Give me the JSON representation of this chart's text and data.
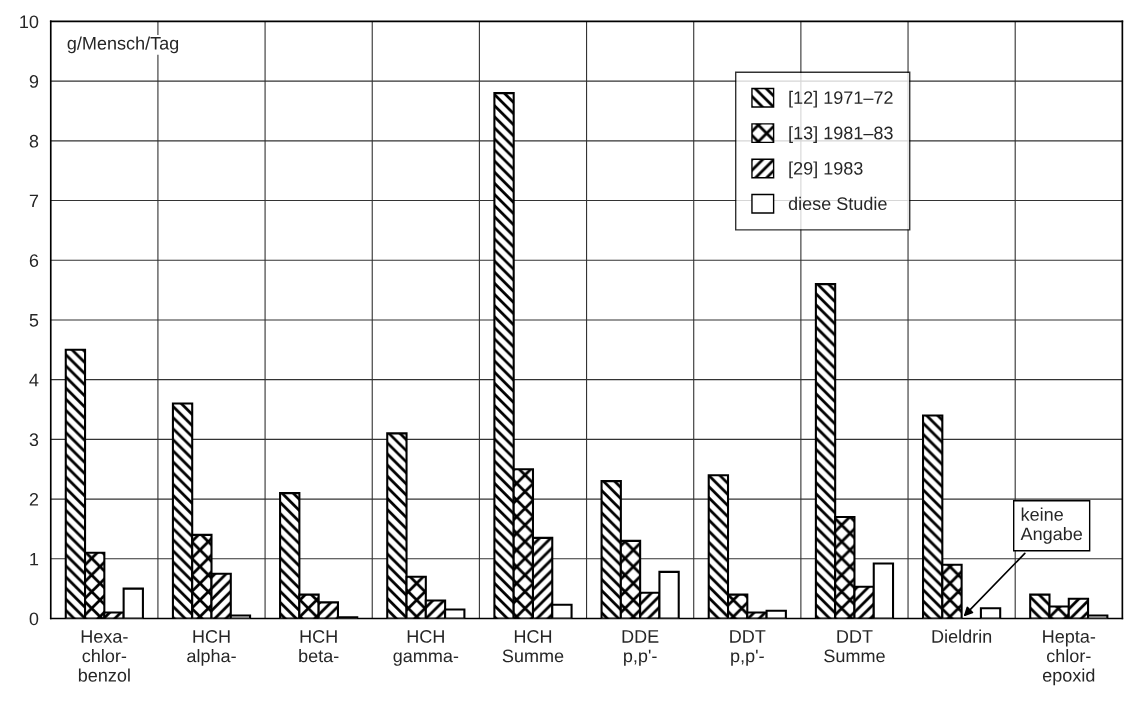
{
  "chart_data": {
    "type": "bar",
    "ylabel": "g/Mensch/Tag",
    "categories": [
      "Hexa-\nchlor-\nbenzol",
      "HCH\nalpha-",
      "HCH\nbeta-",
      "HCH\ngamma-",
      "HCH\nSumme",
      "DDE\np,p'-",
      "DDT\np,p'-",
      "DDT\nSumme",
      "Dieldrin",
      "Hepta-\nchlor-\nepoxid"
    ],
    "series": [
      {
        "name": "[12] 1971–72",
        "color": "#000000",
        "values": [
          4.5,
          3.6,
          2.1,
          3.1,
          8.8,
          2.3,
          2.4,
          5.6,
          3.4,
          0.4
        ]
      },
      {
        "name": "[13] 1981–83",
        "color": "#000000",
        "values": [
          1.1,
          1.4,
          0.4,
          0.7,
          2.5,
          1.3,
          0.4,
          1.7,
          0.9,
          0.2
        ]
      },
      {
        "name": "[29] 1983",
        "color": "#000000",
        "values": [
          0.1,
          0.75,
          0.27,
          0.3,
          1.35,
          0.43,
          0.1,
          0.53,
          null,
          0.33
        ]
      },
      {
        "name": "diese Studie",
        "color": "#000000",
        "values": [
          0.5,
          0.05,
          0.02,
          0.15,
          0.23,
          0.78,
          0.13,
          0.92,
          0.17,
          0.05
        ]
      }
    ],
    "ylim": [
      0,
      10
    ],
    "yticks": [
      0,
      1,
      2,
      3,
      4,
      5,
      6,
      7,
      8,
      9,
      10
    ],
    "grid": true,
    "legend": "top right",
    "annotations": [
      {
        "text": "keine\nAngabe",
        "x": "Dieldrin",
        "y": 0
      }
    ]
  }
}
